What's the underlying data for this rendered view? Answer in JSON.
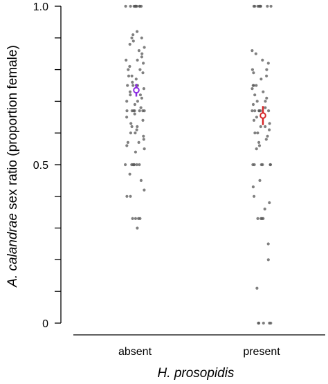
{
  "chart_data": {
    "type": "scatter",
    "title": "",
    "ylabel": {
      "segments": [
        {
          "text": "A. calandrae",
          "italic": true
        },
        {
          "text": " sex ratio (proportion female)",
          "italic": false
        }
      ]
    },
    "xlabel": {
      "segments": [
        {
          "text": "H. prosopidis",
          "italic": true
        }
      ]
    },
    "ylim": [
      0,
      1
    ],
    "yticks": [
      {
        "value": 0,
        "label": "0"
      },
      {
        "value": 0.1,
        "label": ""
      },
      {
        "value": 0.2,
        "label": ""
      },
      {
        "value": 0.3,
        "label": ""
      },
      {
        "value": 0.4,
        "label": ""
      },
      {
        "value": 0.5,
        "label": "0.5"
      },
      {
        "value": 0.6,
        "label": ""
      },
      {
        "value": 0.7,
        "label": ""
      },
      {
        "value": 0.8,
        "label": ""
      },
      {
        "value": 0.9,
        "label": ""
      },
      {
        "value": 1.0,
        "label": "1.0"
      }
    ],
    "categories": [
      "absent",
      "present"
    ],
    "point_color": "#555555",
    "groups": [
      {
        "category": "absent",
        "mean": 0.735,
        "ci": [
          0.715,
          0.755
        ],
        "mean_color": "#8b2be2",
        "values": [
          1,
          1,
          1,
          1,
          1,
          1,
          1,
          1,
          1,
          1,
          1,
          0.92,
          0.91,
          0.9,
          0.9,
          0.89,
          0.88,
          0.87,
          0.86,
          0.85,
          0.84,
          0.83,
          0.83,
          0.82,
          0.81,
          0.8,
          0.8,
          0.79,
          0.78,
          0.78,
          0.77,
          0.76,
          0.75,
          0.75,
          0.75,
          0.75,
          0.74,
          0.73,
          0.72,
          0.72,
          0.71,
          0.7,
          0.7,
          0.69,
          0.68,
          0.67,
          0.67,
          0.67,
          0.67,
          0.67,
          0.67,
          0.67,
          0.66,
          0.65,
          0.64,
          0.63,
          0.62,
          0.62,
          0.61,
          0.6,
          0.6,
          0.59,
          0.58,
          0.57,
          0.57,
          0.56,
          0.55,
          0.54,
          0.5,
          0.5,
          0.5,
          0.5,
          0.5,
          0.5,
          0.5,
          0.47,
          0.45,
          0.42,
          0.4,
          0.4,
          0.33,
          0.33,
          0.33,
          0.33,
          0.3
        ]
      },
      {
        "category": "present",
        "mean": 0.655,
        "ci": [
          0.625,
          0.685
        ],
        "mean_color": "#d62728",
        "values": [
          1,
          1,
          1,
          1,
          1,
          1,
          1,
          1,
          1,
          0.86,
          0.85,
          0.83,
          0.82,
          0.8,
          0.8,
          0.79,
          0.78,
          0.77,
          0.75,
          0.75,
          0.75,
          0.74,
          0.73,
          0.72,
          0.71,
          0.7,
          0.7,
          0.69,
          0.68,
          0.67,
          0.67,
          0.67,
          0.67,
          0.67,
          0.67,
          0.65,
          0.64,
          0.63,
          0.62,
          0.62,
          0.61,
          0.6,
          0.6,
          0.59,
          0.58,
          0.57,
          0.56,
          0.55,
          0.5,
          0.5,
          0.5,
          0.5,
          0.5,
          0.5,
          0.45,
          0.43,
          0.4,
          0.38,
          0.36,
          0.33,
          0.33,
          0.33,
          0.33,
          0.25,
          0.2,
          0.11,
          0.0,
          0.0,
          0.0,
          0.0,
          0.0
        ]
      }
    ],
    "grid": false,
    "legend": "none"
  }
}
